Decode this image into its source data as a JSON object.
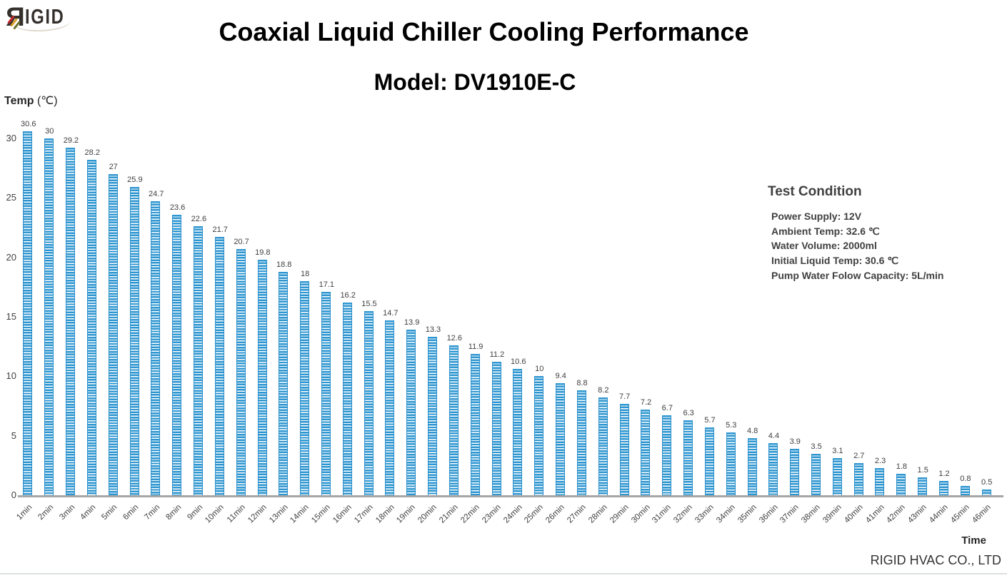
{
  "logo": {
    "r": "R",
    "rest": "IGID"
  },
  "axis": {
    "y_title": "Temp",
    "y_unit": "(℃)",
    "x_title": "Time"
  },
  "chart_data": {
    "type": "bar",
    "title": "Coaxial Liquid Chiller Cooling Performance",
    "subtitle": "Model: DV1910E-C",
    "xlabel": "Time",
    "ylabel": "Temp (℃)",
    "ylim": [
      0,
      30
    ],
    "yticks": [
      0,
      5,
      10,
      15,
      20,
      25,
      30
    ],
    "grid": false,
    "legend": "none",
    "bar_color": "#2e96d0",
    "bar_pattern": "horizontal-stripes",
    "categories": [
      "1min",
      "2min",
      "3min",
      "4min",
      "5min",
      "6min",
      "7min",
      "8min",
      "9min",
      "10min",
      "11min",
      "12min",
      "13min",
      "14min",
      "15min",
      "16min",
      "17min",
      "18min",
      "19min",
      "20min",
      "21min",
      "22min",
      "23min",
      "24min",
      "25min",
      "26min",
      "27min",
      "28min",
      "29min",
      "30min",
      "31min",
      "32min",
      "33min",
      "34min",
      "35min",
      "36min",
      "37min",
      "38min",
      "39min",
      "40min",
      "41min",
      "42min",
      "43min",
      "44min",
      "45min",
      "46min"
    ],
    "values": [
      30.6,
      30,
      29.2,
      28.2,
      27,
      25.9,
      24.7,
      23.6,
      22.6,
      21.7,
      20.7,
      19.8,
      18.8,
      18,
      17.1,
      16.2,
      15.5,
      14.7,
      13.9,
      13.3,
      12.6,
      11.9,
      11.2,
      10.6,
      10,
      9.4,
      8.8,
      8.2,
      7.7,
      7.2,
      6.7,
      6.3,
      5.7,
      5.3,
      4.8,
      4.4,
      3.9,
      3.5,
      3.1,
      2.7,
      2.3,
      1.8,
      1.5,
      1.2,
      0.8,
      0.5
    ]
  },
  "test_condition": {
    "title": "Test Condition",
    "items": [
      "Power Supply: 12V",
      "Ambient Temp: 32.6 ℃",
      "Water Volume: 2000ml",
      "Initial Liquid Temp: 30.6 ℃",
      "Pump Water Folow Capacity: 5L/min"
    ]
  },
  "footer": {
    "company": "RIGID HVAC CO., LTD"
  }
}
